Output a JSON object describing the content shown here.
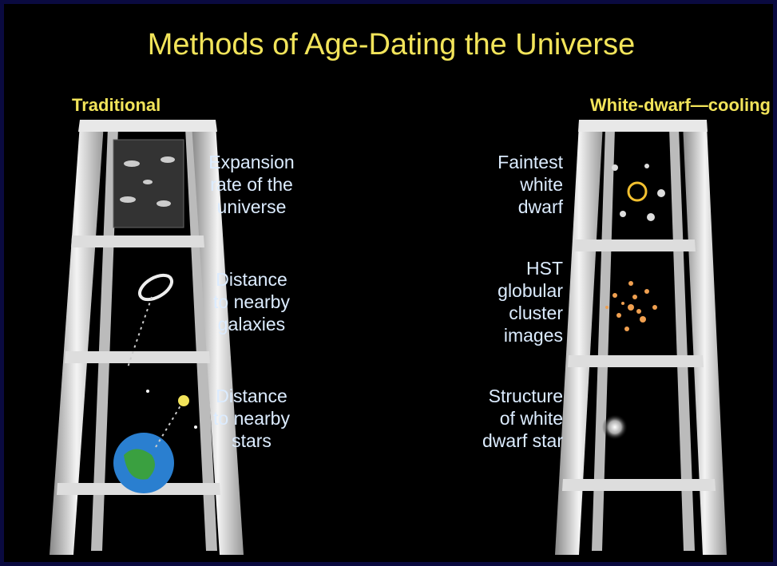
{
  "title": "Methods of Age-Dating the Universe",
  "columns": [
    {
      "heading": "Traditional",
      "items": [
        {
          "lines": [
            "Expansion",
            "rate of the",
            "universe"
          ]
        },
        {
          "lines": [
            "Distance",
            "to nearby",
            "galaxies"
          ]
        },
        {
          "lines": [
            "Distance",
            "to nearby",
            "stars"
          ]
        }
      ]
    },
    {
      "heading": "White-dwarf—cooling",
      "items": [
        {
          "lines": [
            "Faintest",
            "white",
            "dwarf"
          ]
        },
        {
          "lines": [
            "HST",
            "globular",
            "cluster",
            "images"
          ]
        },
        {
          "lines": [
            "Structure",
            "of white",
            "dwarf star"
          ]
        }
      ]
    }
  ]
}
